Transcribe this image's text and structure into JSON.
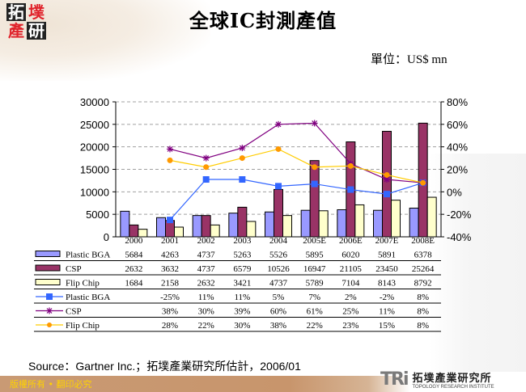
{
  "header": {
    "logo_chars": [
      "拓",
      "墣",
      "產",
      "研"
    ],
    "title": "全球IC封測產值",
    "unit": "單位：US$ mn"
  },
  "colors": {
    "plastic_bga_bar": "#9999ff",
    "csp_bar": "#993366",
    "flip_chip_bar": "#ffffcc",
    "plastic_bga_line": "#3366ff",
    "csp_line": "#800080",
    "flip_chip_line": "#ffcc00",
    "flip_chip_marker": "#ff9900",
    "footer_bg": "#c8956c",
    "footer_text": "#ffd200"
  },
  "chart_data": {
    "type": "bar",
    "title": "全球IC封測產值",
    "unit": "單位：US$ mn",
    "categories": [
      "2000",
      "2001",
      "2002",
      "2003",
      "2004",
      "2005E",
      "2006E",
      "2007E",
      "2008E"
    ],
    "y_left": {
      "ticks": [
        "30000",
        "25000",
        "20000",
        "15000",
        "10000",
        "5000",
        "0"
      ],
      "ylim": [
        0,
        30000
      ]
    },
    "y_right": {
      "ticks": [
        "80%",
        "60%",
        "40%",
        "20%",
        "0%",
        "-20%",
        "-40%"
      ],
      "ylim": [
        -40,
        80
      ]
    },
    "grid": "dashed horizontal",
    "series": [
      {
        "name": "Plastic BGA",
        "type": "bar",
        "axis": "left",
        "values": [
          5684,
          4263,
          4737,
          5263,
          5526,
          5895,
          6020,
          5891,
          6378
        ]
      },
      {
        "name": "CSP",
        "type": "bar",
        "axis": "left",
        "values": [
          2632,
          3632,
          4737,
          6579,
          10526,
          16947,
          21105,
          23450,
          25264
        ]
      },
      {
        "name": "Flip Chip",
        "type": "bar",
        "axis": "left",
        "values": [
          1684,
          2158,
          2632,
          3421,
          4737,
          5789,
          7104,
          8143,
          8792
        ]
      },
      {
        "name": "Plastic BGA",
        "type": "line",
        "axis": "right",
        "marker": "square",
        "values": [
          null,
          -25,
          11,
          11,
          5,
          7,
          2,
          -2,
          8
        ]
      },
      {
        "name": "CSP",
        "type": "line",
        "axis": "right",
        "marker": "star",
        "values": [
          null,
          38,
          30,
          39,
          60,
          61,
          25,
          11,
          8
        ]
      },
      {
        "name": "Flip Chip",
        "type": "line",
        "axis": "right",
        "marker": "circle",
        "values": [
          null,
          28,
          22,
          30,
          38,
          22,
          23,
          15,
          8
        ]
      }
    ],
    "legend_position": "data table below chart"
  },
  "table": {
    "header": [
      "2000",
      "2001",
      "2002",
      "2003",
      "2004",
      "2005E",
      "2006E",
      "2007E",
      "2008E"
    ],
    "rows": [
      {
        "label": "Plastic BGA",
        "cells": [
          "5684",
          "4263",
          "4737",
          "5263",
          "5526",
          "5895",
          "6020",
          "5891",
          "6378"
        ]
      },
      {
        "label": "CSP",
        "cells": [
          "2632",
          "3632",
          "4737",
          "6579",
          "10526",
          "16947",
          "21105",
          "23450",
          "25264"
        ]
      },
      {
        "label": "Flip Chip",
        "cells": [
          "1684",
          "2158",
          "2632",
          "3421",
          "4737",
          "5789",
          "7104",
          "8143",
          "8792"
        ]
      },
      {
        "label": "Plastic BGA",
        "cells": [
          "",
          "-25%",
          "11%",
          "11%",
          "5%",
          "7%",
          "2%",
          "-2%",
          "8%"
        ]
      },
      {
        "label": "CSP",
        "cells": [
          "",
          "38%",
          "30%",
          "39%",
          "60%",
          "61%",
          "25%",
          "11%",
          "8%"
        ]
      },
      {
        "label": "Flip Chip",
        "cells": [
          "",
          "28%",
          "22%",
          "30%",
          "38%",
          "22%",
          "23%",
          "15%",
          "8%"
        ]
      }
    ]
  },
  "footer": {
    "source": "Source：Gartner Inc.；拓墣產業研究所估計，2006/01",
    "copyright": "版權所有 • 翻印必究",
    "brand_mark": "TRi",
    "brand_cn": "拓墣產業研究所",
    "brand_en": "TOPOLOGY RESEARCH INSTITUTE"
  }
}
